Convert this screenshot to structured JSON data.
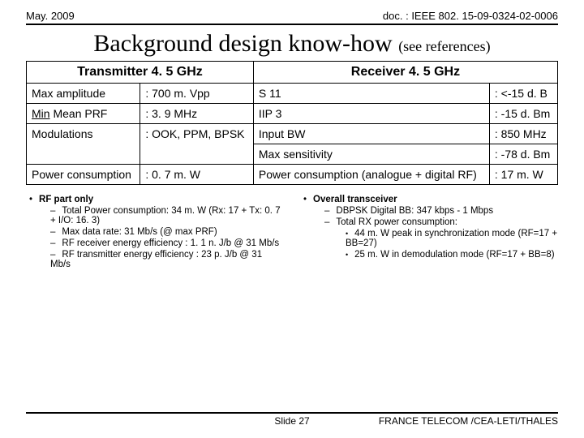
{
  "header": {
    "left": "May. 2009",
    "right": "doc. : IEEE 802. 15-09-0324-02-0006"
  },
  "title": {
    "main": "Background design know-how ",
    "sub": "(see references)"
  },
  "table": {
    "tx_header": "Transmitter 4. 5 GHz",
    "rx_header": "Receiver 4. 5 GHz",
    "rows": [
      {
        "tl": "Max amplitude",
        "tv": ": 700 m. Vpp",
        "rl": "S 11",
        "rv": ": <-15 d. B"
      },
      {
        "tl": "Min Mean PRF",
        "tv": ": 3. 9 MHz",
        "rl": "IIP 3",
        "rv": ": -15 d. Bm"
      },
      {
        "tl": "Modulations",
        "tv": ": OOK, PPM, BPSK",
        "rl": "Input BW",
        "rv": ": 850 MHz",
        "rl2": "Max sensitivity",
        "rv2": ": -78 d. Bm"
      },
      {
        "tl": "Power consumption",
        "tv": ": 0. 7 m. W",
        "rl": "Power consumption (analogue + digital RF)",
        "rv": ": 17 m. W"
      }
    ]
  },
  "bullets": {
    "left": {
      "head": "RF part only",
      "items": [
        "Total Power consumption: 34 m. W (Rx: 17 + Tx: 0. 7 + I/O: 16. 3)",
        "Max data rate: 31 Mb/s (@ max PRF)",
        "RF receiver energy efficiency : 1. 1 n. J/b @ 31 Mb/s",
        "RF transmitter energy efficiency : 23 p. J/b @ 31 Mb/s"
      ]
    },
    "right": {
      "head": "Overall transceiver",
      "items": [
        "DBPSK Digital BB: 347 kbps - 1 Mbps",
        "Total RX power consumption:"
      ],
      "sub": [
        "44 m. W peak in synchronization mode (RF=17 + BB=27)",
        "25 m. W in demodulation mode (RF=17 + BB=8)"
      ]
    }
  },
  "footer": {
    "mid": "Slide 27",
    "right": "FRANCE TELECOM /CEA-LETI/THALES"
  }
}
